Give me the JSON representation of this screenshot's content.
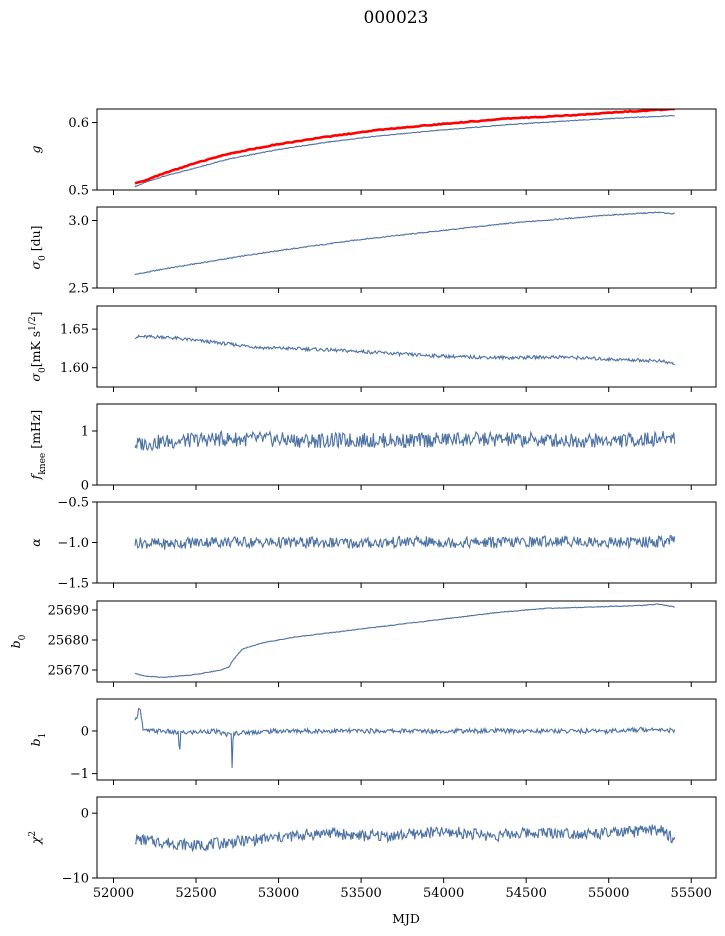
{
  "title": "000023",
  "colors": {
    "series": "#4c72a4",
    "reference": "#ff0000",
    "axes": "#000000"
  },
  "chart_data": [
    {
      "type": "line",
      "id": "g",
      "ylabel": "g",
      "ylim": [
        0.5,
        0.62
      ],
      "yticks": [
        0.5,
        0.6
      ],
      "ytick_labels": [
        "0.5",
        "0.6"
      ],
      "series": [
        {
          "role": "main",
          "x": [
            52130,
            52200,
            52300,
            52500,
            52700,
            53000,
            53300,
            53600,
            54000,
            54400,
            54800,
            55100,
            55400
          ],
          "y": [
            0.505,
            0.512,
            0.52,
            0.533,
            0.546,
            0.56,
            0.571,
            0.58,
            0.589,
            0.597,
            0.603,
            0.607,
            0.61
          ]
        },
        {
          "role": "reference",
          "x": [
            52130,
            52200,
            52300,
            52500,
            52700,
            53000,
            53300,
            53600,
            54000,
            54400,
            54800,
            55100,
            55400
          ],
          "y": [
            0.51,
            0.515,
            0.524,
            0.54,
            0.554,
            0.568,
            0.579,
            0.589,
            0.598,
            0.606,
            0.611,
            0.616,
            0.62
          ]
        }
      ]
    },
    {
      "type": "line",
      "id": "sigma0_du",
      "ylabel": "σ₀ [du]",
      "ylim": [
        2.5,
        3.1
      ],
      "yticks": [
        2.5,
        3.0
      ],
      "ytick_labels": [
        "2.5",
        "3.0"
      ],
      "series": [
        {
          "x": [
            52130,
            52300,
            52600,
            52900,
            53200,
            53500,
            53800,
            54100,
            54400,
            54700,
            55000,
            55300,
            55400
          ],
          "y": [
            2.6,
            2.64,
            2.7,
            2.76,
            2.81,
            2.86,
            2.9,
            2.94,
            2.98,
            3.01,
            3.04,
            3.06,
            3.05
          ]
        }
      ]
    },
    {
      "type": "line",
      "id": "sigma0_mk",
      "ylabel": "σ₀[mK s^1/2]",
      "ylim": [
        1.575,
        1.68
      ],
      "yticks": [
        1.6,
        1.65
      ],
      "ytick_labels": [
        "1.60",
        "1.65"
      ],
      "series": [
        {
          "x": [
            52130,
            52300,
            52600,
            52900,
            53200,
            53500,
            53800,
            54100,
            54400,
            54700,
            55000,
            55300,
            55400
          ],
          "y": [
            1.64,
            1.64,
            1.633,
            1.626,
            1.624,
            1.621,
            1.617,
            1.614,
            1.613,
            1.614,
            1.611,
            1.609,
            1.605
          ]
        }
      ]
    },
    {
      "type": "line",
      "id": "fknee",
      "ylabel": "f_knee [mHz]",
      "ylim": [
        0,
        1.5
      ],
      "yticks": [
        0,
        1
      ],
      "ytick_labels": [
        "0",
        "1"
      ],
      "series": [
        {
          "x": [
            52130,
            52300,
            52600,
            52900,
            53200,
            53500,
            53800,
            54100,
            54400,
            54700,
            55000,
            55300,
            55400
          ],
          "y": [
            0.75,
            0.8,
            0.85,
            0.85,
            0.82,
            0.83,
            0.82,
            0.85,
            0.84,
            0.83,
            0.82,
            0.85,
            0.9
          ]
        }
      ]
    },
    {
      "type": "line",
      "id": "alpha",
      "ylabel": "α",
      "ylim": [
        -1.5,
        -0.5
      ],
      "yticks": [
        -1.5,
        -1.0,
        -0.5
      ],
      "ytick_labels": [
        "−1.5",
        "−1.0",
        "−0.5"
      ],
      "series": [
        {
          "x": [
            52130,
            52300,
            52600,
            52900,
            53200,
            53500,
            53800,
            54100,
            54400,
            54700,
            55000,
            55300,
            55400
          ],
          "y": [
            -1.0,
            -1.02,
            -0.99,
            -1.0,
            -1.0,
            -1.01,
            -0.99,
            -1.0,
            -1.0,
            -0.98,
            -1.0,
            -0.99,
            -0.98
          ]
        }
      ]
    },
    {
      "type": "line",
      "id": "b0",
      "ylabel": "b₀",
      "ylim": [
        25666,
        25693
      ],
      "yticks": [
        25670,
        25680,
        25690
      ],
      "ytick_labels": [
        "25670",
        "25680",
        "25690"
      ],
      "series": [
        {
          "x": [
            52130,
            52180,
            52300,
            52500,
            52650,
            52700,
            52720,
            52780,
            52900,
            53100,
            53400,
            53700,
            54000,
            54300,
            54600,
            54900,
            55200,
            55300,
            55400
          ],
          "y": [
            25669,
            25668,
            25667.5,
            25668.5,
            25670,
            25671,
            25673,
            25677,
            25679,
            25681,
            25683,
            25685,
            25687,
            25689,
            25690.5,
            25691,
            25691.5,
            25692,
            25691
          ]
        }
      ]
    },
    {
      "type": "line",
      "id": "b1",
      "ylabel": "b₁",
      "ylim": [
        -1.15,
        0.75
      ],
      "yticks": [
        -1,
        0
      ],
      "ytick_labels": [
        "−1",
        "0"
      ],
      "series": [
        {
          "x": [
            52130,
            52160,
            52180,
            52300,
            52395,
            52400,
            52405,
            52600,
            52715,
            52720,
            52725,
            53000,
            53500,
            54000,
            54500,
            55000,
            55300,
            55400
          ],
          "y": [
            0.2,
            0.6,
            0.0,
            0.0,
            -0.05,
            -0.75,
            -0.05,
            0.0,
            -0.1,
            -1.1,
            -0.05,
            0.0,
            0.0,
            0.0,
            0.0,
            0.0,
            0.05,
            0.0
          ]
        }
      ]
    },
    {
      "type": "line",
      "id": "chi2",
      "ylabel": "χ²",
      "ylim": [
        -10,
        2.5
      ],
      "yticks": [
        -10,
        0
      ],
      "ytick_labels": [
        "−10",
        "0"
      ],
      "series": [
        {
          "x": [
            52130,
            52300,
            52500,
            52700,
            52900,
            53100,
            53300,
            53500,
            53700,
            53900,
            54100,
            54300,
            54500,
            54700,
            54900,
            55100,
            55300,
            55400
          ],
          "y": [
            -4,
            -4.5,
            -5,
            -4.5,
            -4,
            -3.5,
            -3,
            -3.5,
            -3.5,
            -3,
            -3,
            -3.5,
            -3,
            -3,
            -3.2,
            -3,
            -2.5,
            -4
          ]
        }
      ]
    }
  ],
  "xaxis": {
    "label": "MJD",
    "xlim": [
      51900,
      55650
    ],
    "ticks": [
      52000,
      52500,
      53000,
      53500,
      54000,
      54500,
      55000,
      55500
    ],
    "tick_labels": [
      "52000",
      "52500",
      "53000",
      "53500",
      "54000",
      "54500",
      "55000",
      "55500"
    ]
  }
}
